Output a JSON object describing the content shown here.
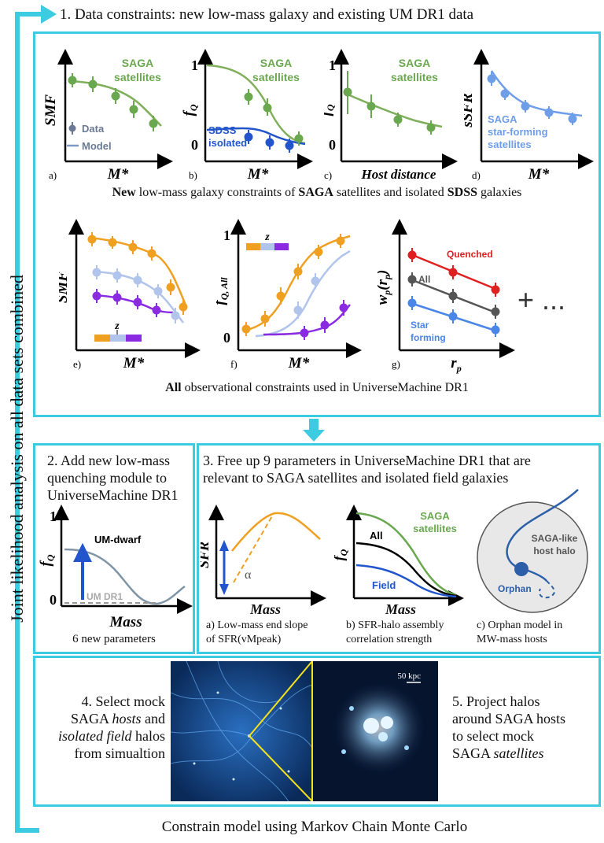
{
  "side_label": "Joint likelihood analysis on all data sets combined",
  "step1": {
    "title": "1. Data constraints: new low-mass galaxy and existing UM DR1 data",
    "row1_caption_parts": [
      "New",
      " low-mass galaxy constraints of ",
      "SAGA",
      " satellites and isolated ",
      "SDSS",
      " galaxies"
    ],
    "row2_caption_parts": [
      "All",
      " observational constraints used in UniverseMachine DR1"
    ],
    "panel_a": {
      "tag": "a)",
      "ylabel": "SMF",
      "xlabel": "M*",
      "series": [
        "SAGA",
        "satellites"
      ],
      "legend_data": "Data",
      "legend_model": "Model"
    },
    "panel_b": {
      "tag": "b)",
      "ylabel": "f",
      "ysub": "Q",
      "xlabel": "M*",
      "ytop": "1",
      "ybottom": "0",
      "series1": [
        "SAGA",
        "satellites"
      ],
      "series2": [
        "SDSS",
        "isolated"
      ]
    },
    "panel_c": {
      "tag": "c)",
      "ylabel": "f",
      "ysub": "Q",
      "xlabel": "Host distance",
      "ytop": "1",
      "ybottom": "0",
      "series": [
        "SAGA",
        "satellites"
      ]
    },
    "panel_d": {
      "tag": "d)",
      "ylabel": "sSFR",
      "xlabel": "M*",
      "series": [
        "SAGA",
        "star-forming",
        "satellites"
      ]
    },
    "panel_e": {
      "tag": "e)",
      "ylabel": "SMF",
      "xlabel": "M*",
      "z": "z"
    },
    "panel_f": {
      "tag": "f)",
      "ylabel": "f",
      "ysub": "Q, All",
      "xlabel": "M*",
      "ytop": "1",
      "ybottom": "0",
      "z": "z"
    },
    "panel_g": {
      "tag": "g)",
      "ylabel": "w",
      "ysub": "p",
      "ylabel2": "(r",
      "ysub2": "p",
      "ylabel3": ")",
      "xlabel": "r",
      "xsub": "p",
      "quenched": "Quenched",
      "all": "All",
      "star": [
        "Star",
        "forming"
      ]
    },
    "ellipsis": "+ ..."
  },
  "step2": {
    "title": [
      "2. Add new low-mass",
      "quenching module to",
      "UniverseMachine DR1"
    ],
    "ylabel": "f",
    "ysub": "Q",
    "ytop": "1",
    "ybottom": "0",
    "xlabel": "Mass",
    "um_dwarf": "UM-dwarf",
    "um_dr1": "UM DR1",
    "caption": "6 new parameters"
  },
  "step3": {
    "title": [
      "3. Free up 9 parameters in UniverseMachine DR1 that are",
      "relevant to SAGA satellites and isolated field galaxies"
    ],
    "panel_a": {
      "ylabel": "SFR",
      "xlabel": "Mass",
      "alpha": "α",
      "caption": [
        "a) Low-mass end slope",
        "of SFR(vMpeak)"
      ]
    },
    "panel_b": {
      "ylabel": "f",
      "ysub": "Q",
      "xlabel": "Mass",
      "all": "All",
      "field": "Field",
      "saga": [
        "SAGA",
        "satellites"
      ],
      "caption": [
        "b) SFR-halo assembly",
        "correlation strength"
      ]
    },
    "panel_c": {
      "host": [
        "SAGA-like",
        "host halo"
      ],
      "orphan": "Orphan",
      "caption": [
        "c) Orphan model in",
        "MW-mass hosts"
      ]
    }
  },
  "step4": {
    "text": [
      "4. Select mock",
      "SAGA ",
      "hosts",
      " and",
      "isolated field",
      " halos",
      "from simualtion"
    ]
  },
  "step5": {
    "text": [
      "5. Project halos",
      "around SAGA hosts",
      "to select mock",
      "SAGA ",
      "satellites"
    ]
  },
  "scale_bar": "50 kpc",
  "bottom": "Constrain model using Markov Chain Monte Carlo",
  "colors": {
    "cyan": "#3ccbe0",
    "green": "#6aa84f",
    "blue": "#2255cc",
    "lightblue": "#6f9ee8",
    "orange": "#f0a020",
    "purple": "#8a2be2",
    "red": "#e02020",
    "gray": "#555555"
  }
}
